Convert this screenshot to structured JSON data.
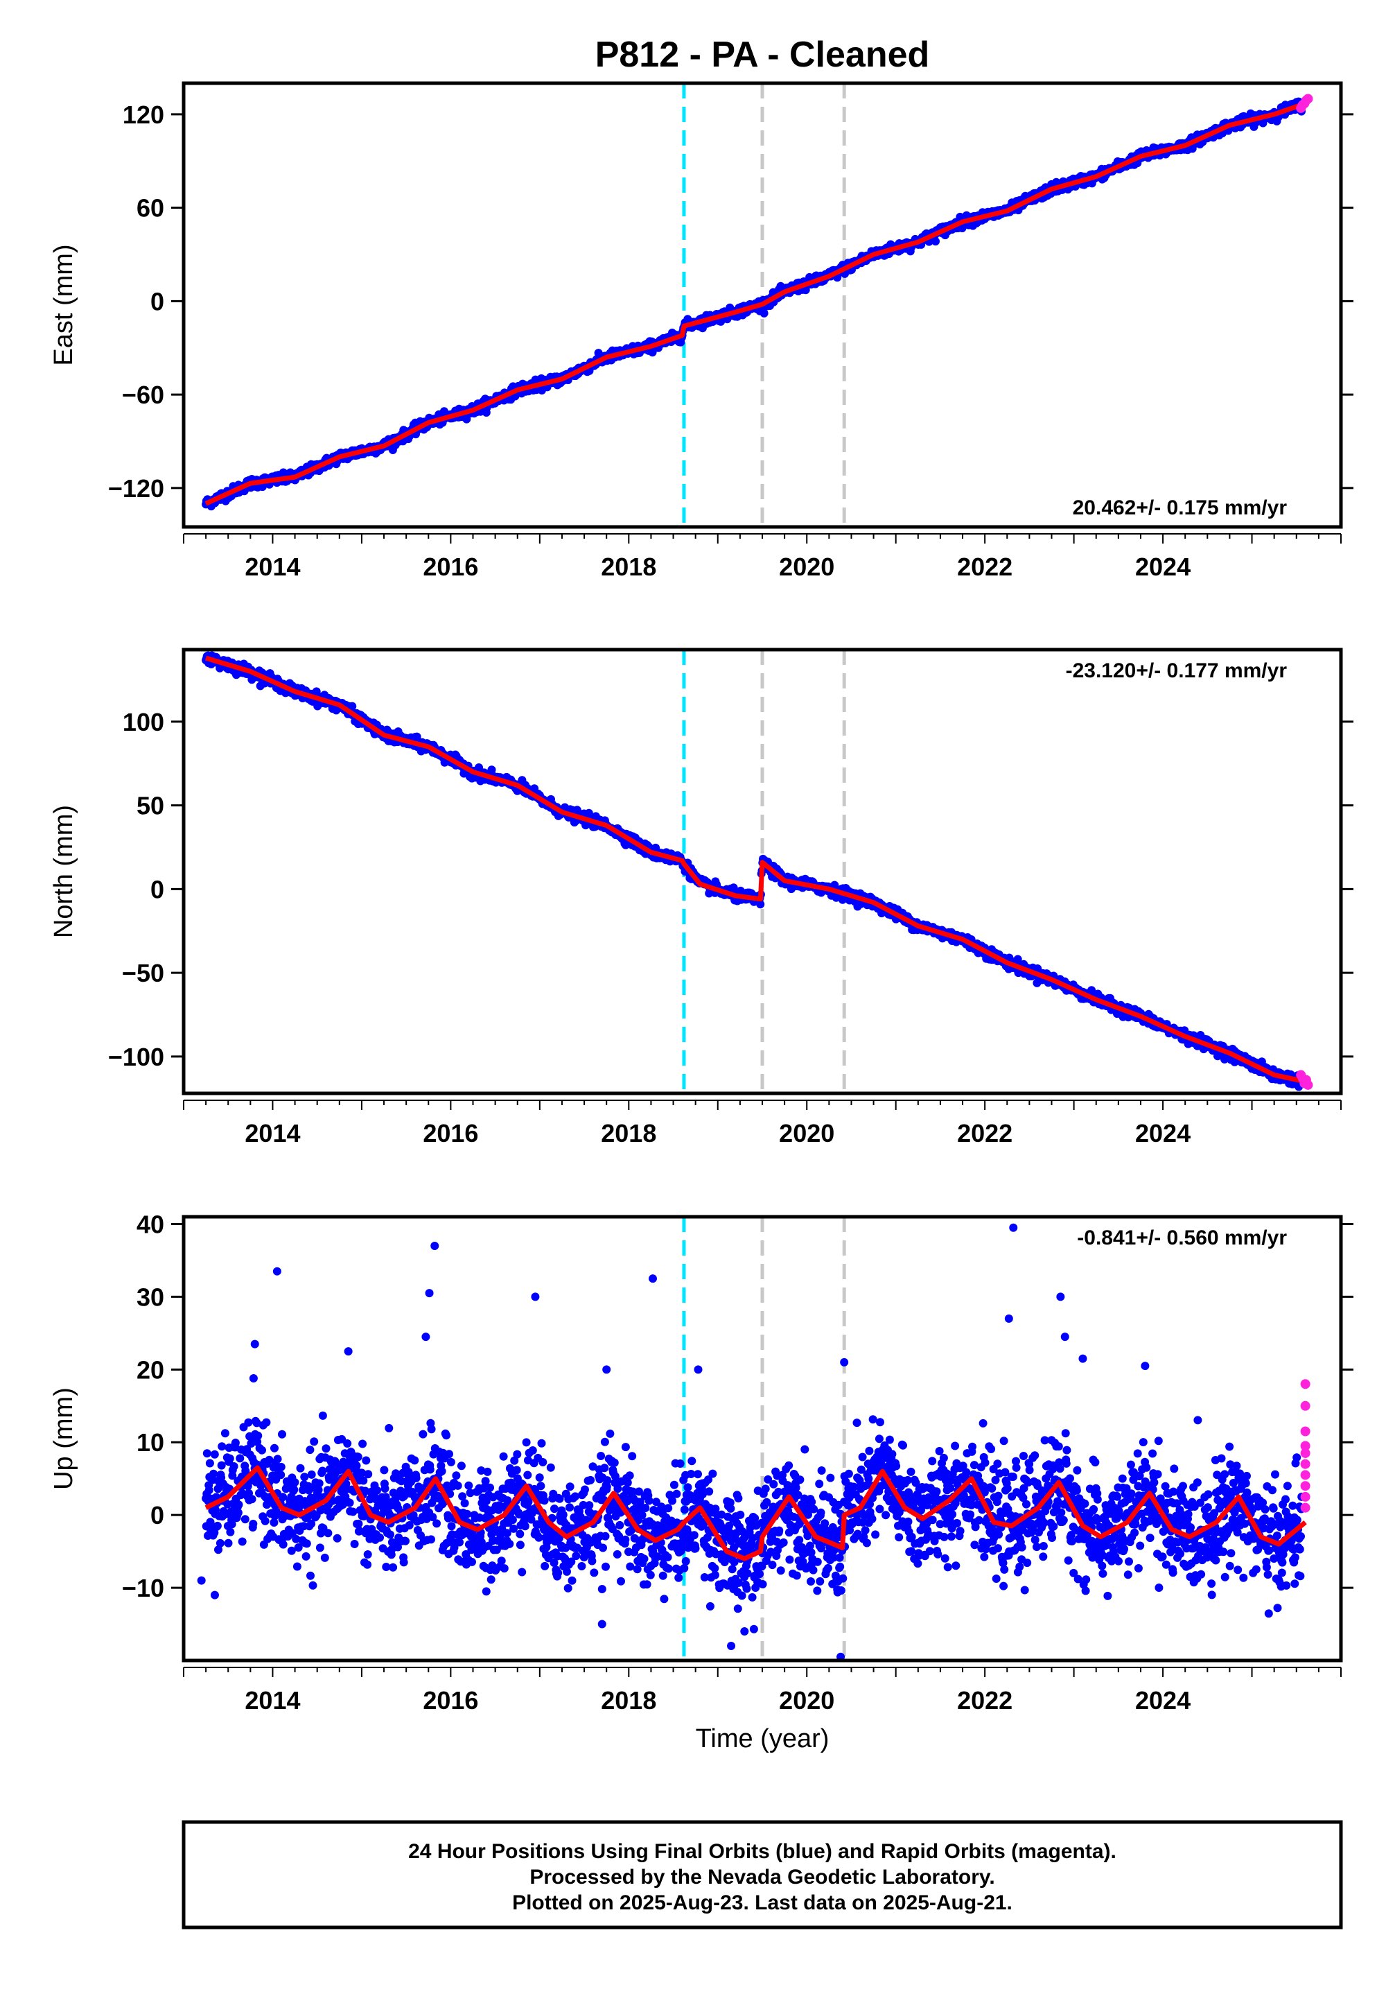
{
  "title": "P812  - PA - Cleaned",
  "caption": {
    "line1": "24 Hour Positions Using Final Orbits (blue) and Rapid Orbits (magenta).",
    "line2": "Processed by the Nevada Geodetic Laboratory.",
    "line3": "Plotted on 2025-Aug-23. Last data on 2025-Aug-21."
  },
  "colors": {
    "final": "#0000ff",
    "rapid": "#ff22dd",
    "model": "#ff0000",
    "equipment_change": "#00e5ff",
    "earthquake": "#c8c8c8"
  },
  "xlabel": "Time (year)",
  "chart_data": [
    {
      "type": "scatter",
      "ylabel": "East (mm)",
      "ylim": [
        -145,
        140
      ],
      "yticks": [
        -120,
        -60,
        0,
        60,
        120
      ],
      "xlim": [
        2013.0,
        2026.0
      ],
      "xticks": [
        2014,
        2016,
        2018,
        2020,
        2022,
        2024
      ],
      "rate": "20.462+/- 0.175 mm/yr",
      "rate_position": "bottom-right",
      "vlines": {
        "cyan": [
          2018.62
        ],
        "gray": [
          2019.5,
          2020.42
        ]
      },
      "model": [
        [
          2013.25,
          -130
        ],
        [
          2013.75,
          -117
        ],
        [
          2014.25,
          -113
        ],
        [
          2014.75,
          -100
        ],
        [
          2015.25,
          -93
        ],
        [
          2015.75,
          -78
        ],
        [
          2016.25,
          -70
        ],
        [
          2016.75,
          -57
        ],
        [
          2017.25,
          -50
        ],
        [
          2017.75,
          -36
        ],
        [
          2018.25,
          -29
        ],
        [
          2018.6,
          -22
        ],
        [
          2018.62,
          -16
        ],
        [
          2019.2,
          -7
        ],
        [
          2019.5,
          -2
        ],
        [
          2019.75,
          6
        ],
        [
          2020.25,
          16
        ],
        [
          2020.75,
          30
        ],
        [
          2021.25,
          38
        ],
        [
          2021.75,
          51
        ],
        [
          2022.25,
          58
        ],
        [
          2022.75,
          72
        ],
        [
          2023.25,
          80
        ],
        [
          2023.75,
          93
        ],
        [
          2024.25,
          100
        ],
        [
          2024.75,
          113
        ],
        [
          2025.25,
          120
        ],
        [
          2025.6,
          127
        ]
      ],
      "rapid": [
        [
          2025.55,
          124
        ],
        [
          2025.57,
          126
        ],
        [
          2025.59,
          127
        ],
        [
          2025.61,
          129
        ],
        [
          2025.63,
          130
        ]
      ]
    },
    {
      "type": "scatter",
      "ylabel": "North (mm)",
      "ylim": [
        -122,
        143
      ],
      "yticks": [
        -100,
        -50,
        0,
        50,
        100
      ],
      "xlim": [
        2013.0,
        2026.0
      ],
      "xticks": [
        2014,
        2016,
        2018,
        2020,
        2022,
        2024
      ],
      "rate": "-23.120+/- 0.177 mm/yr",
      "rate_position": "top-right",
      "vlines": {
        "cyan": [
          2018.62
        ],
        "gray": [
          2019.5,
          2020.42
        ]
      },
      "model": [
        [
          2013.25,
          138
        ],
        [
          2013.75,
          130
        ],
        [
          2014.25,
          118
        ],
        [
          2014.75,
          110
        ],
        [
          2015.25,
          92
        ],
        [
          2015.75,
          85
        ],
        [
          2016.25,
          70
        ],
        [
          2016.75,
          62
        ],
        [
          2017.25,
          46
        ],
        [
          2017.75,
          38
        ],
        [
          2018.25,
          22
        ],
        [
          2018.6,
          17
        ],
        [
          2018.62,
          15
        ],
        [
          2018.8,
          3
        ],
        [
          2019.2,
          -4
        ],
        [
          2019.48,
          -6
        ],
        [
          2019.5,
          16
        ],
        [
          2019.75,
          5
        ],
        [
          2020.25,
          0
        ],
        [
          2020.75,
          -8
        ],
        [
          2021.25,
          -22
        ],
        [
          2021.75,
          -30
        ],
        [
          2022.25,
          -44
        ],
        [
          2022.75,
          -54
        ],
        [
          2023.25,
          -66
        ],
        [
          2023.75,
          -76
        ],
        [
          2024.25,
          -88
        ],
        [
          2024.75,
          -98
        ],
        [
          2025.25,
          -111
        ],
        [
          2025.6,
          -115
        ]
      ],
      "rapid": [
        [
          2025.55,
          -111
        ],
        [
          2025.57,
          -113
        ],
        [
          2025.59,
          -116
        ],
        [
          2025.61,
          -114
        ],
        [
          2025.63,
          -117
        ]
      ]
    },
    {
      "type": "scatter",
      "ylabel": "Up (mm)",
      "ylim": [
        -20,
        41
      ],
      "yticks": [
        -10,
        0,
        10,
        20,
        30,
        40
      ],
      "xlim": [
        2013.0,
        2026.0
      ],
      "xticks": [
        2014,
        2016,
        2018,
        2020,
        2022,
        2024
      ],
      "rate": "-0.841+/- 0.560 mm/yr",
      "rate_position": "top-right",
      "vlines": {
        "cyan": [
          2018.62
        ],
        "gray": [
          2019.5,
          2020.42
        ]
      },
      "model": [
        [
          2013.25,
          1
        ],
        [
          2013.5,
          2.5
        ],
        [
          2013.83,
          6.5
        ],
        [
          2014.1,
          1
        ],
        [
          2014.3,
          0
        ],
        [
          2014.6,
          2
        ],
        [
          2014.85,
          6
        ],
        [
          2015.1,
          0
        ],
        [
          2015.3,
          -1
        ],
        [
          2015.6,
          1
        ],
        [
          2015.83,
          5
        ],
        [
          2016.1,
          -1
        ],
        [
          2016.3,
          -2
        ],
        [
          2016.6,
          0
        ],
        [
          2016.85,
          4
        ],
        [
          2017.1,
          -1
        ],
        [
          2017.3,
          -3
        ],
        [
          2017.6,
          -1
        ],
        [
          2017.83,
          3
        ],
        [
          2018.1,
          -2
        ],
        [
          2018.3,
          -3.5
        ],
        [
          2018.55,
          -2
        ],
        [
          2018.62,
          -1
        ],
        [
          2018.8,
          1
        ],
        [
          2019.1,
          -5
        ],
        [
          2019.3,
          -6
        ],
        [
          2019.48,
          -5
        ],
        [
          2019.5,
          -3
        ],
        [
          2019.8,
          2.5
        ],
        [
          2020.1,
          -3
        ],
        [
          2020.4,
          -4.5
        ],
        [
          2020.42,
          0
        ],
        [
          2020.6,
          1
        ],
        [
          2020.85,
          6
        ],
        [
          2021.1,
          1
        ],
        [
          2021.3,
          -0.5
        ],
        [
          2021.6,
          2
        ],
        [
          2021.85,
          5
        ],
        [
          2022.1,
          -1
        ],
        [
          2022.3,
          -1.5
        ],
        [
          2022.6,
          1
        ],
        [
          2022.83,
          4.5
        ],
        [
          2023.1,
          -1.5
        ],
        [
          2023.3,
          -3
        ],
        [
          2023.6,
          -1
        ],
        [
          2023.85,
          3
        ],
        [
          2024.1,
          -2
        ],
        [
          2024.3,
          -3
        ],
        [
          2024.6,
          -1
        ],
        [
          2024.85,
          2.5
        ],
        [
          2025.1,
          -3
        ],
        [
          2025.3,
          -4
        ],
        [
          2025.6,
          -1
        ]
      ],
      "outliers": [
        [
          2014.05,
          33.5
        ],
        [
          2013.8,
          23.5
        ],
        [
          2014.85,
          22.5
        ],
        [
          2015.72,
          24.5
        ],
        [
          2015.76,
          30.5
        ],
        [
          2015.82,
          37
        ],
        [
          2016.95,
          30
        ],
        [
          2017.75,
          20
        ],
        [
          2018.27,
          32.5
        ],
        [
          2018.78,
          20
        ],
        [
          2019.15,
          -18
        ],
        [
          2020.38,
          -19.5
        ],
        [
          2020.42,
          21
        ],
        [
          2022.27,
          27
        ],
        [
          2022.32,
          39.5
        ],
        [
          2022.85,
          30
        ],
        [
          2022.9,
          24.5
        ],
        [
          2023.1,
          21.5
        ],
        [
          2023.8,
          20.5
        ],
        [
          2013.2,
          -9
        ],
        [
          2013.35,
          -11
        ],
        [
          2016.4,
          -10.5
        ],
        [
          2017.7,
          -15
        ],
        [
          2019.3,
          -16
        ]
      ],
      "rapid": [
        [
          2025.6,
          18
        ],
        [
          2025.6,
          15
        ],
        [
          2025.6,
          11.5
        ],
        [
          2025.6,
          9.5
        ],
        [
          2025.6,
          8.5
        ],
        [
          2025.6,
          7
        ],
        [
          2025.6,
          5.5
        ],
        [
          2025.6,
          4
        ],
        [
          2025.6,
          2.5
        ],
        [
          2025.6,
          1
        ]
      ]
    }
  ]
}
